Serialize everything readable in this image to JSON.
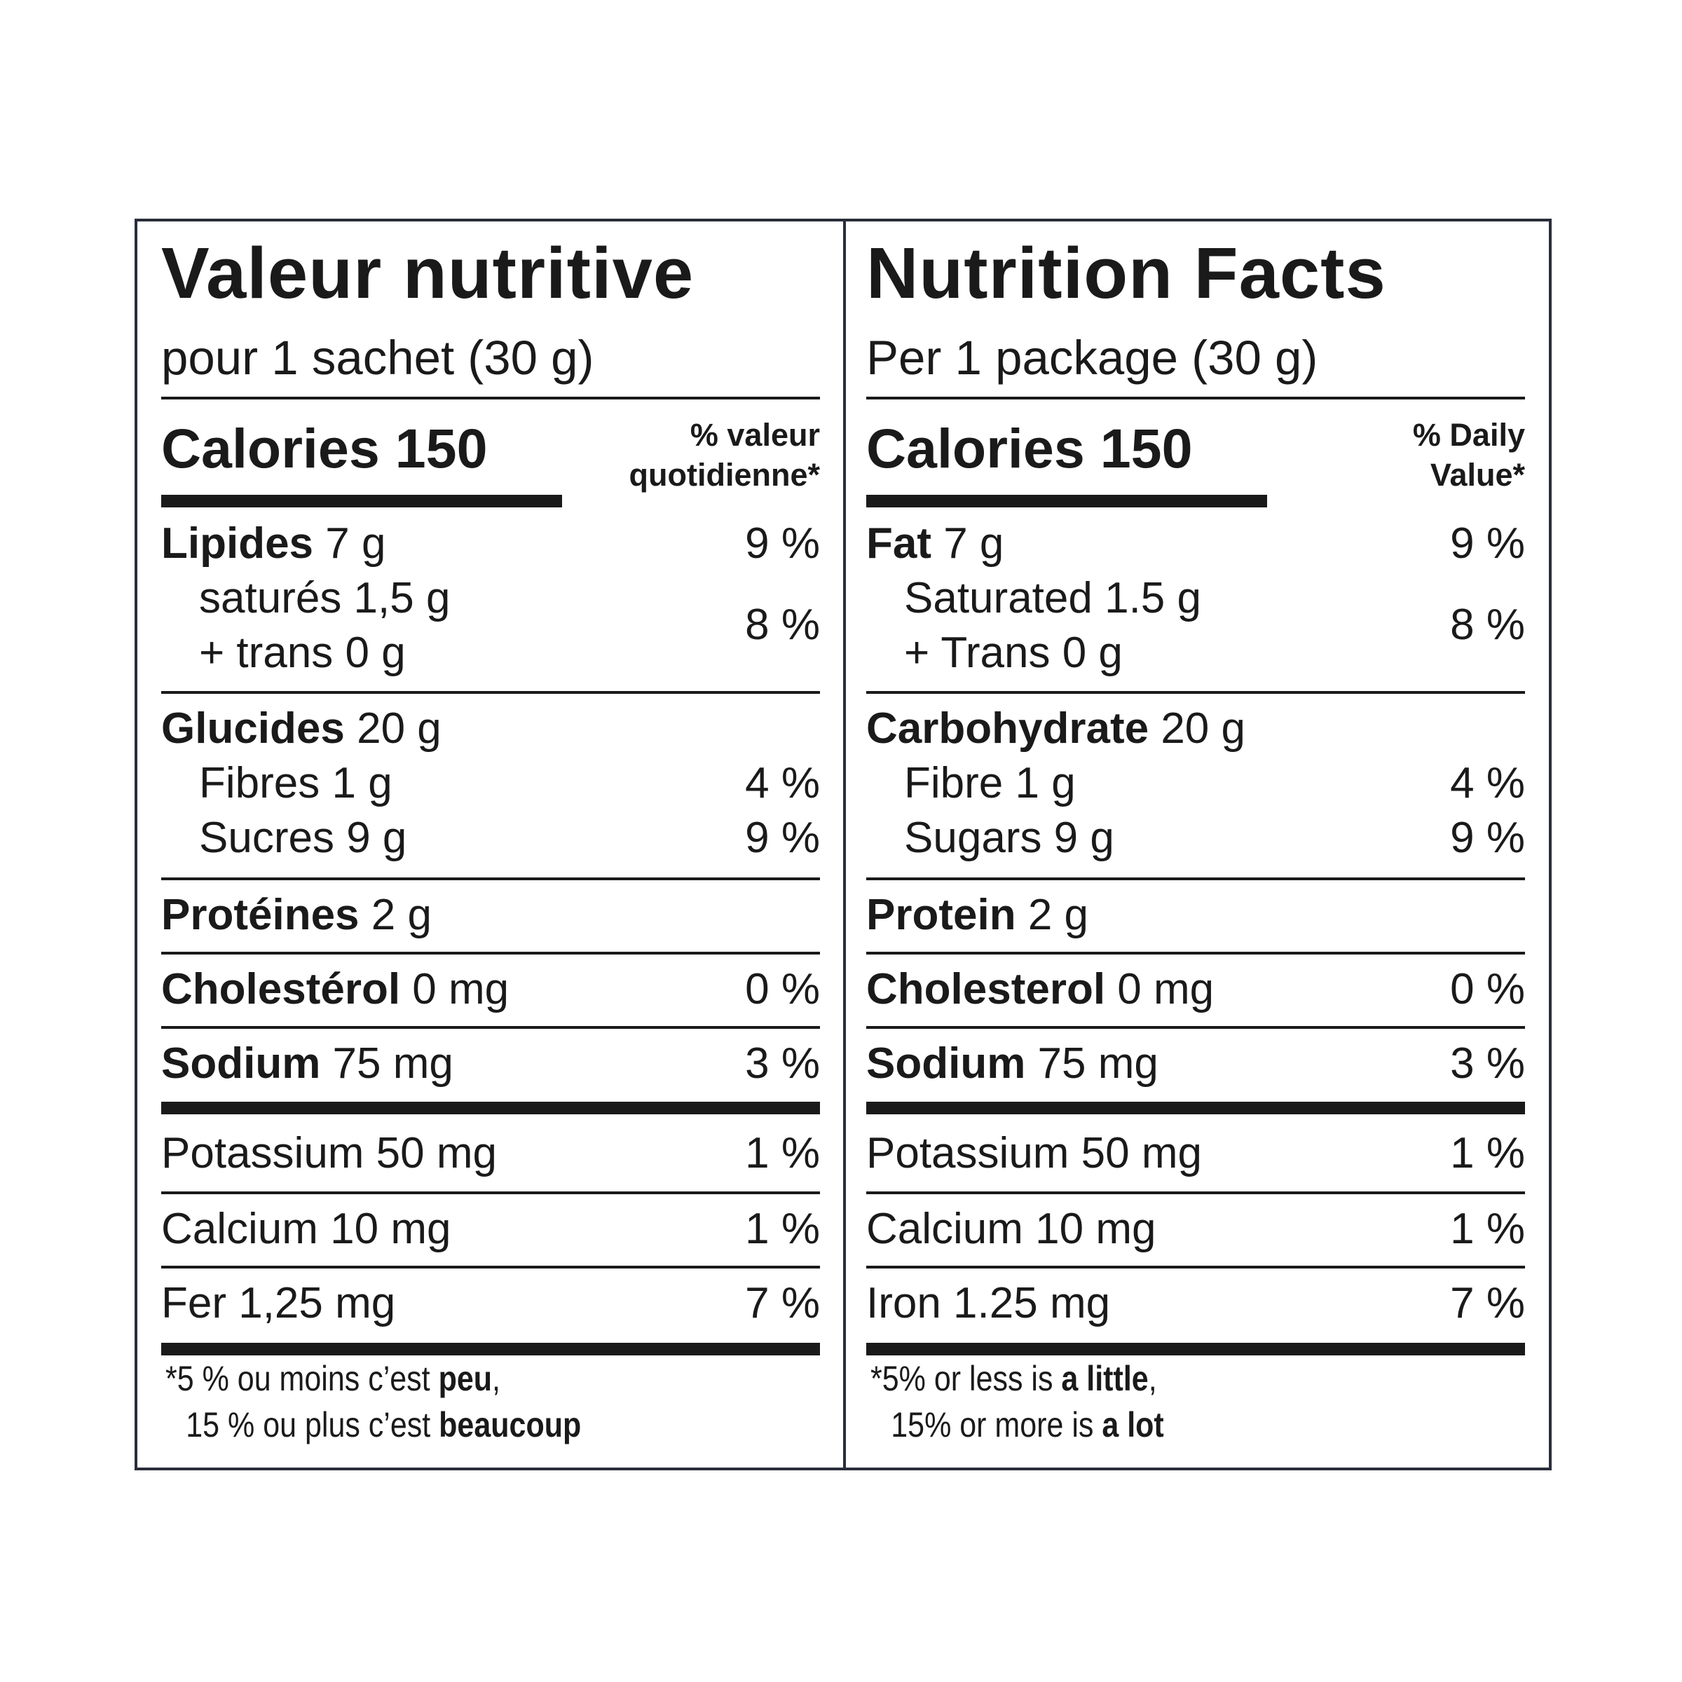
{
  "panels": {
    "fr": {
      "title": "Valeur nutritive",
      "serving": "pour 1 sachet (30 g)",
      "calories": "Calories 150",
      "dv_header_1": "% valeur",
      "dv_header_2": "quotidienne*",
      "fat": {
        "name": "Lipides",
        "amount": " 7 g",
        "dv": "9 %"
      },
      "saturated": "saturés 1,5 g",
      "trans": "+ trans 0 g",
      "sat_trans_dv": "8 %",
      "carbohydrate": {
        "name": "Glucides",
        "amount": " 20 g"
      },
      "fibre": {
        "label": "Fibres 1 g",
        "dv": "4 %"
      },
      "sugars": {
        "label": "Sucres 9 g",
        "dv": "9 %"
      },
      "protein": {
        "name": "Protéines",
        "amount": " 2 g"
      },
      "cholesterol": {
        "name": "Cholestérol",
        "amount": " 0 mg",
        "dv": "0 %"
      },
      "sodium": {
        "name": "Sodium",
        "amount": " 75 mg",
        "dv": "3 %"
      },
      "potassium": {
        "label": "Potassium 50 mg",
        "dv": "1 %"
      },
      "calcium": {
        "label": "Calcium 10 mg",
        "dv": "1 %"
      },
      "iron": {
        "label": "Fer 1,25 mg",
        "dv": "7 %"
      },
      "footnote": {
        "line1_a": "*5 % ou moins c’est ",
        "line1_b": "peu",
        "line1_c": ",",
        "line2_a": "15 % ou plus c’est ",
        "line2_b": "beaucoup"
      }
    },
    "en": {
      "title": "Nutrition Facts",
      "serving": "Per 1 package (30 g)",
      "calories": "Calories 150",
      "dv_header_1": "% Daily",
      "dv_header_2": "Value*",
      "fat": {
        "name": "Fat",
        "amount": " 7 g",
        "dv": "9 %"
      },
      "saturated": "Saturated 1.5 g",
      "trans": "+ Trans 0 g",
      "sat_trans_dv": "8 %",
      "carbohydrate": {
        "name": "Carbohydrate",
        "amount": " 20 g"
      },
      "fibre": {
        "label": "Fibre 1 g",
        "dv": "4 %"
      },
      "sugars": {
        "label": "Sugars 9 g",
        "dv": "9 %"
      },
      "protein": {
        "name": "Protein",
        "amount": " 2 g"
      },
      "cholesterol": {
        "name": "Cholesterol",
        "amount": " 0 mg",
        "dv": "0 %"
      },
      "sodium": {
        "name": "Sodium",
        "amount": " 75 mg",
        "dv": "3 %"
      },
      "potassium": {
        "label": "Potassium 50 mg",
        "dv": "1 %"
      },
      "calcium": {
        "label": "Calcium 10 mg",
        "dv": "1 %"
      },
      "iron": {
        "label": "Iron 1.25 mg",
        "dv": "7 %"
      },
      "footnote": {
        "line1_a": "*5% or less is ",
        "line1_b": "a little",
        "line1_c": ",",
        "line2_a": "15% or more is ",
        "line2_b": "a lot"
      }
    }
  }
}
